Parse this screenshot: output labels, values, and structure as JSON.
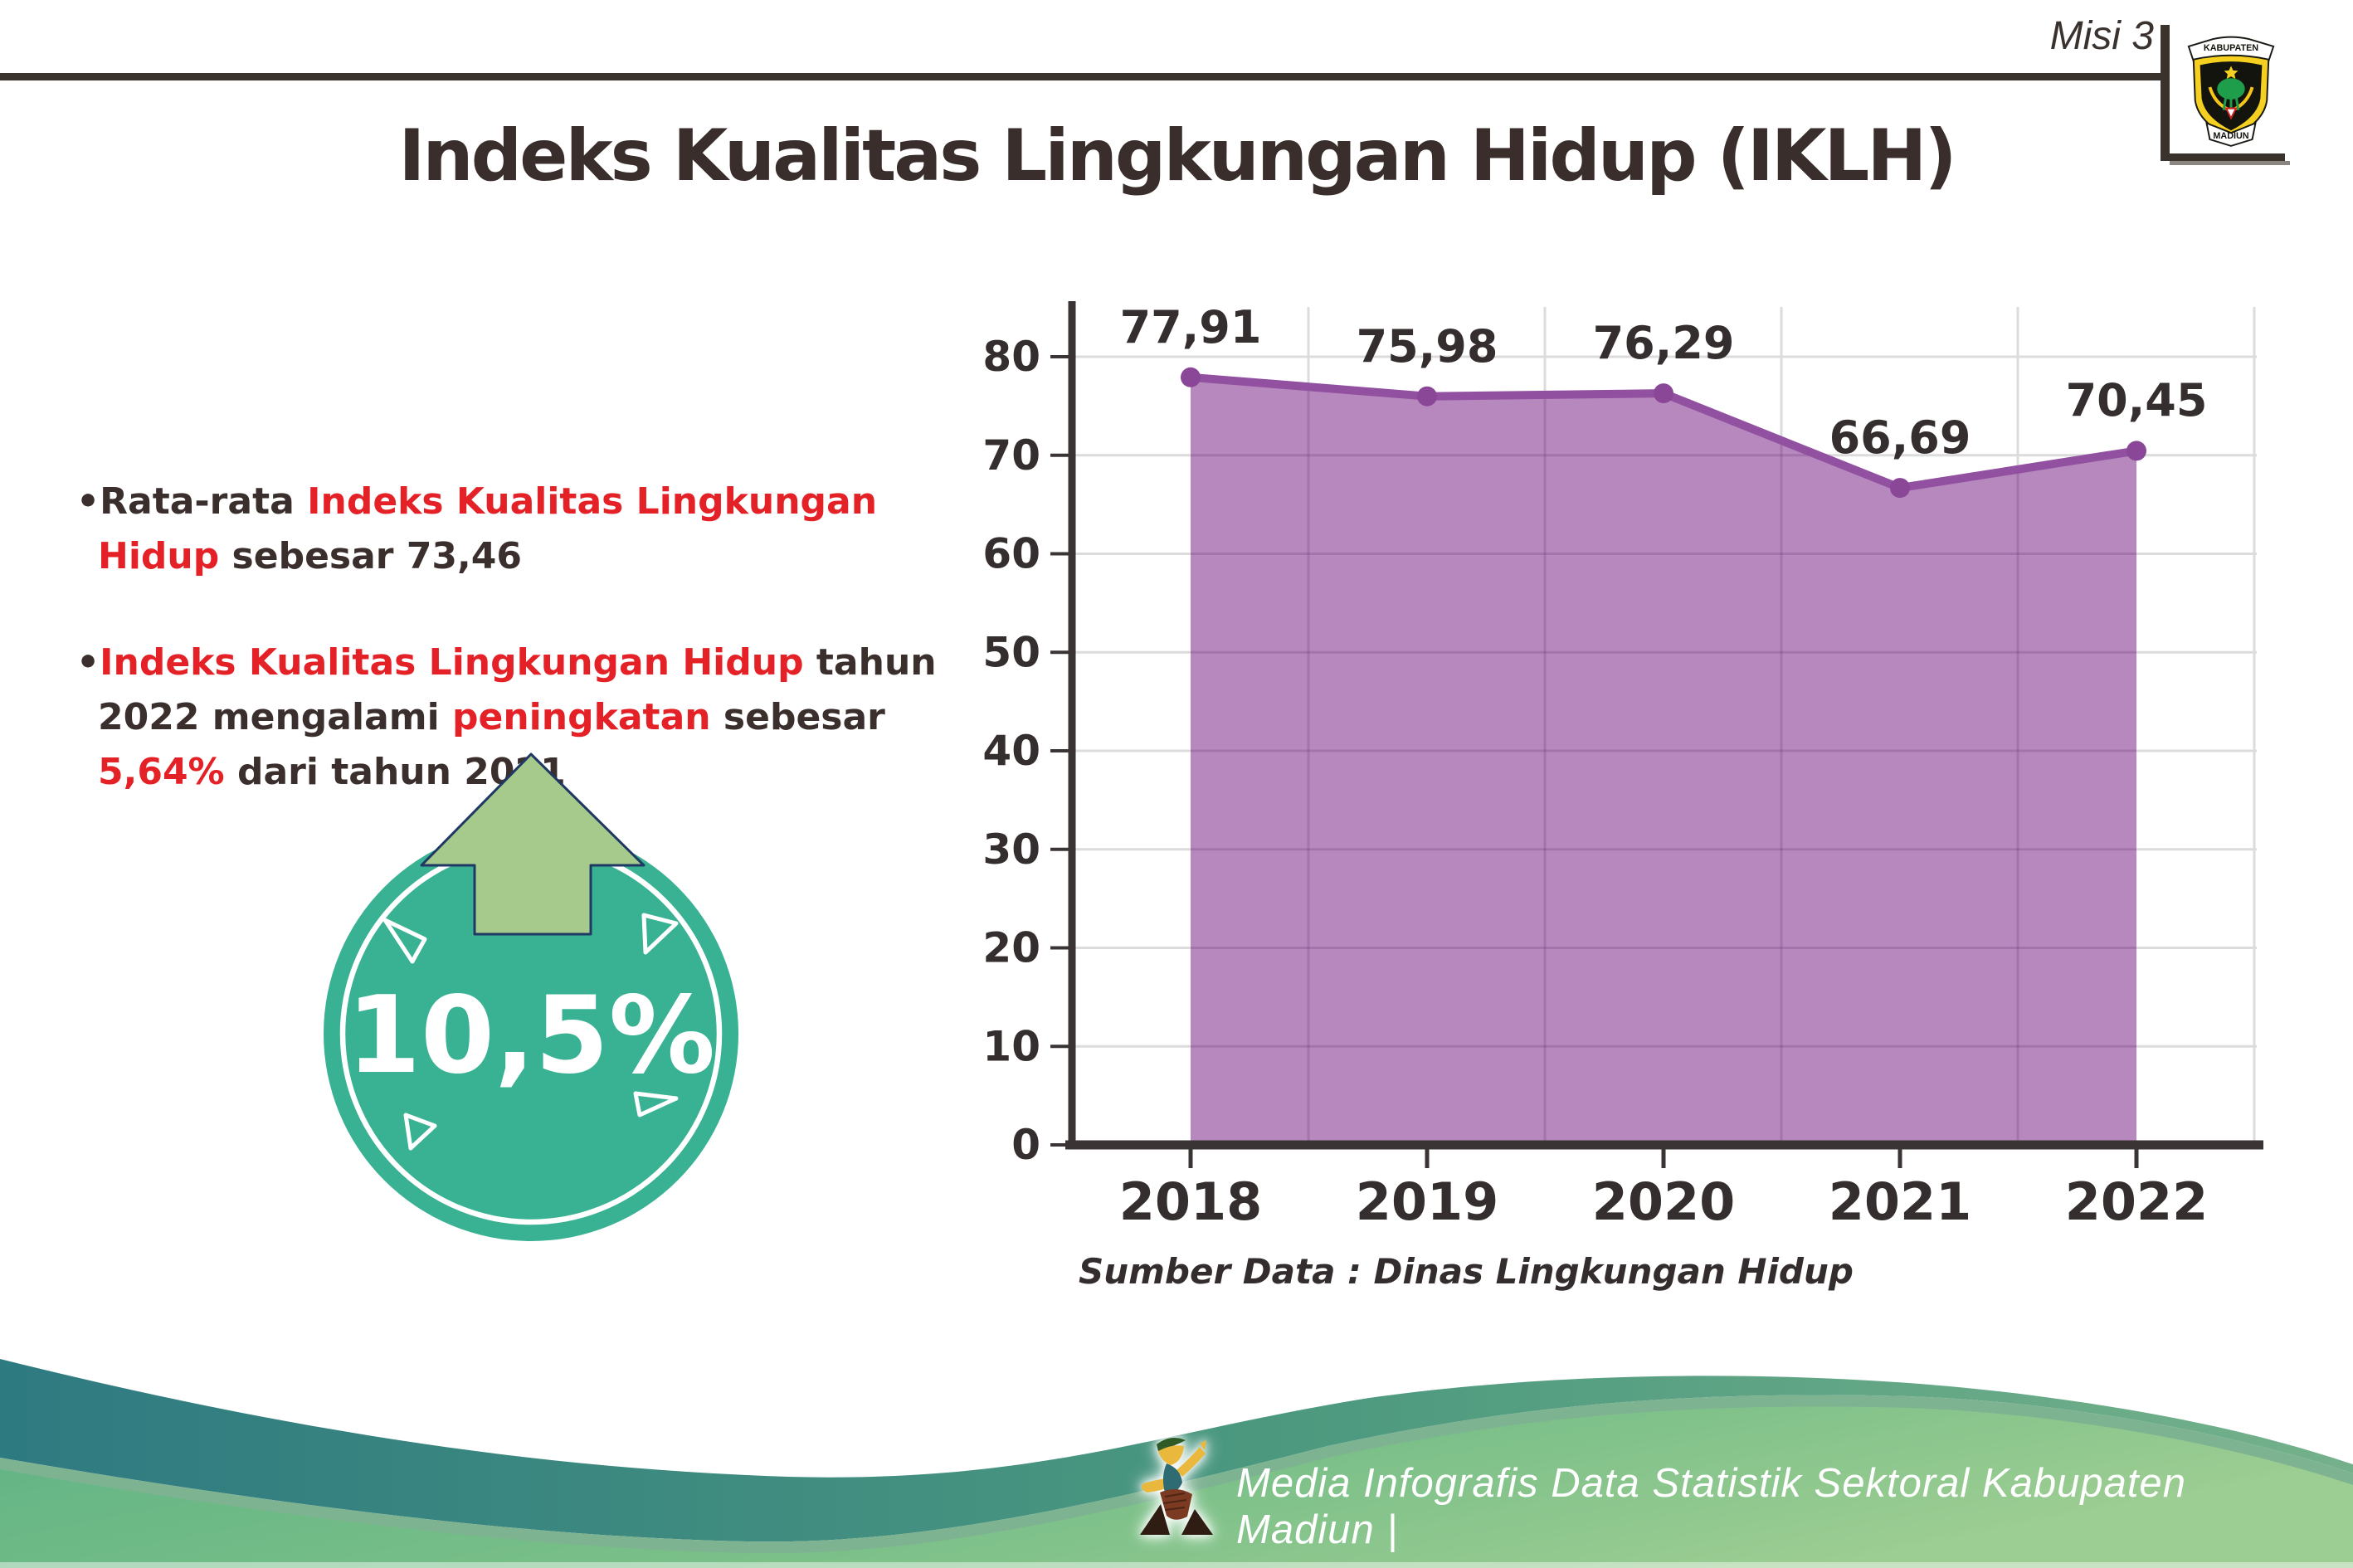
{
  "header": {
    "misi_label": "Misi 3",
    "logo": {
      "top_banner": "KABUPATEN",
      "bottom_banner": "MADIUN"
    }
  },
  "title": "Indeks Kualitas Lingkungan Hidup (IKLH)",
  "bullets": {
    "glyph": "•",
    "item1": {
      "seg1": "Rata-rata ",
      "seg2": "Indeks Kualitas Lingkungan Hidup",
      "seg3": " sebesar 73,46"
    },
    "item2": {
      "seg1": "Indeks Kualitas Lingkungan Hidup",
      "seg2": " tahun 2022 mengalami ",
      "seg3": "peningkatan",
      "seg4": " sebesar ",
      "seg5": "5,64%",
      "seg6": " dari tahun 2021"
    }
  },
  "badge": {
    "value": "10,5%",
    "direction": "up-arrow"
  },
  "chart_data": {
    "type": "area",
    "categories": [
      "2018",
      "2019",
      "2020",
      "2021",
      "2022"
    ],
    "values": [
      77.91,
      75.98,
      76.29,
      66.69,
      70.45
    ],
    "point_labels": [
      "77,91",
      "75,98",
      "76,29",
      "66,69",
      "70,45"
    ],
    "title": "",
    "xlabel": "",
    "ylabel": "",
    "ylim": [
      0,
      80
    ],
    "yticks": [
      0,
      10,
      20,
      30,
      40,
      50,
      60,
      70,
      80
    ],
    "grid": true,
    "legend": false,
    "source_note": "Sumber Data : Dinas Lingkungan Hidup",
    "area_color": "#b788bd",
    "line_color": "#9150a0",
    "marker_color": "#8a4697",
    "axis_color": "#3b3434",
    "grid_color": "#dcdcdc",
    "label_color": "#352e2e"
  },
  "footer": {
    "credit": "Media Infografis Data Statistik Sektoral Kabupaten Madiun |"
  },
  "colors": {
    "accent_red": "#e42127",
    "badge_teal": "#38b293",
    "badge_arrow_green": "#a5ca8c",
    "badge_arrow_outline": "#1f3864",
    "wave_teal": "#2e7a81",
    "wave_green": "#74b18b",
    "wave_light_green": "#8cc892",
    "dark_text": "#3a2e2c"
  }
}
